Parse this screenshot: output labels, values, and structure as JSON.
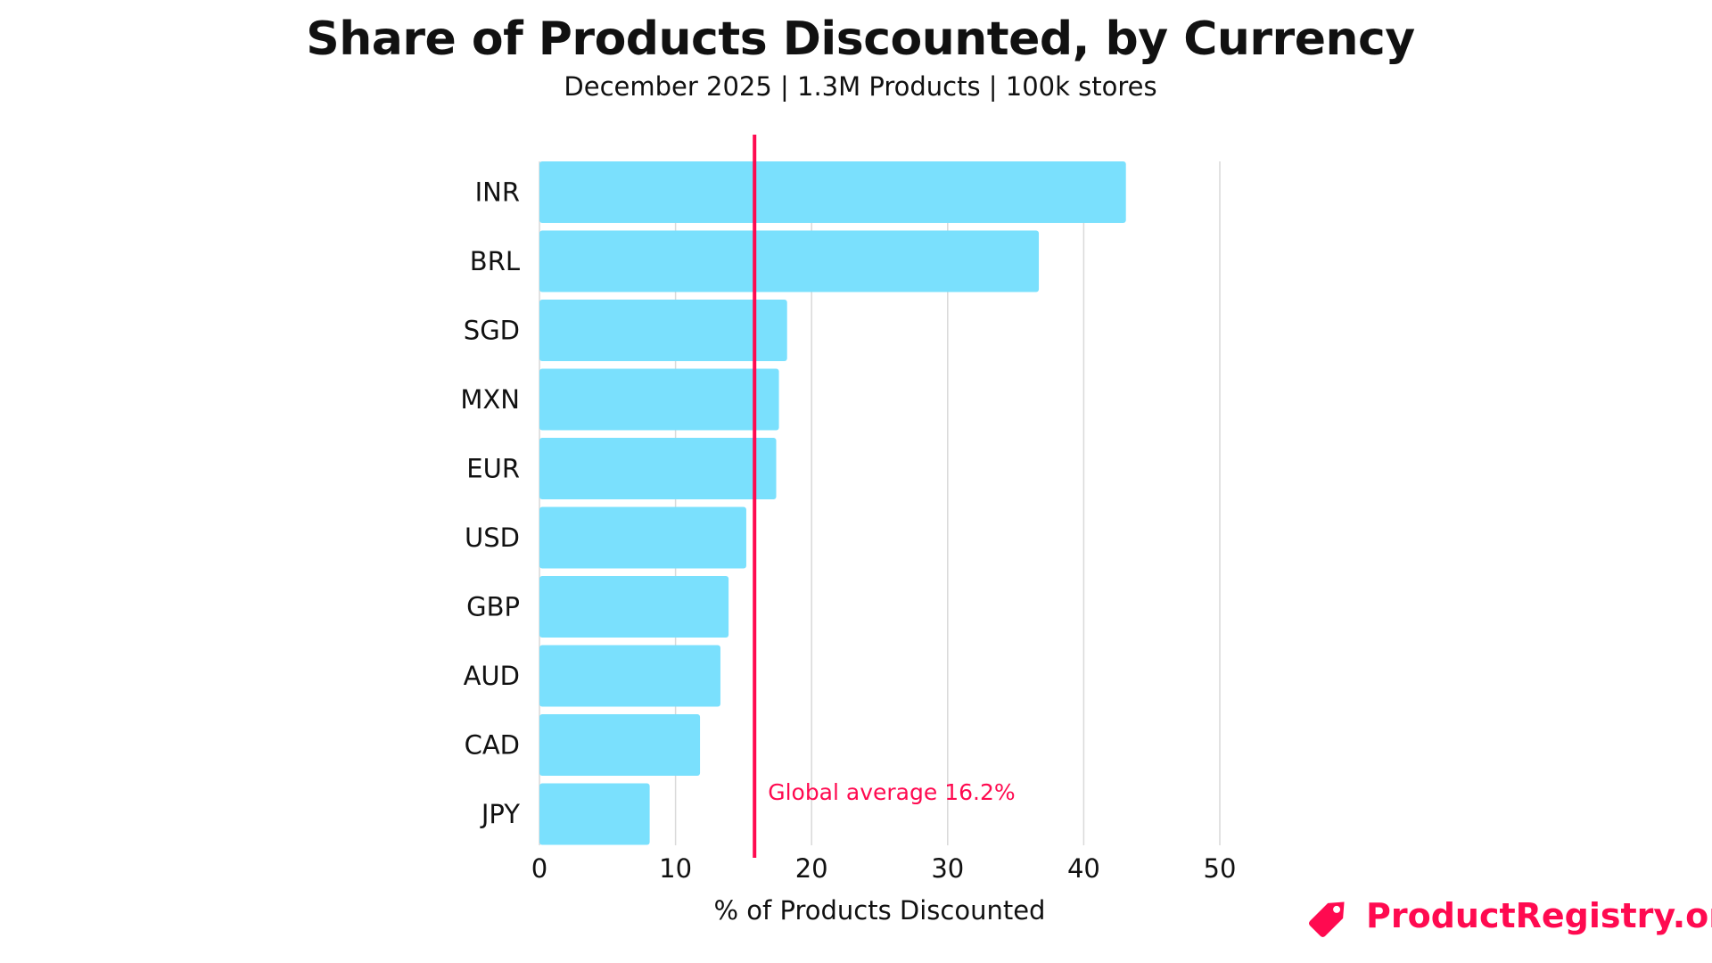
{
  "chart_data": {
    "type": "bar",
    "orientation": "horizontal",
    "title": "Share of Products Discounted, by Currency",
    "subtitle": "December 2025 | 1.3M Products | 100k stores",
    "xlabel": "% of Products Discounted",
    "ylabel": "",
    "categories": [
      "INR",
      "BRL",
      "SGD",
      "MXN",
      "EUR",
      "USD",
      "GBP",
      "AUD",
      "CAD",
      "JPY"
    ],
    "values": [
      43.1,
      36.7,
      18.2,
      17.6,
      17.4,
      15.2,
      13.9,
      13.3,
      11.8,
      8.1
    ],
    "xlim": [
      0,
      50
    ],
    "xticks": [
      "0",
      "10",
      "20",
      "30",
      "40",
      "50"
    ],
    "grid": true,
    "bar_color": "#7ae0fd",
    "reference_line": {
      "value": 16.2,
      "label": "Global average 16.2%",
      "color": "#ff0a50"
    }
  },
  "branding": {
    "logo_text": "ProductRegistry.org",
    "icon": "price-tag-icon",
    "color": "#ff0a50"
  }
}
